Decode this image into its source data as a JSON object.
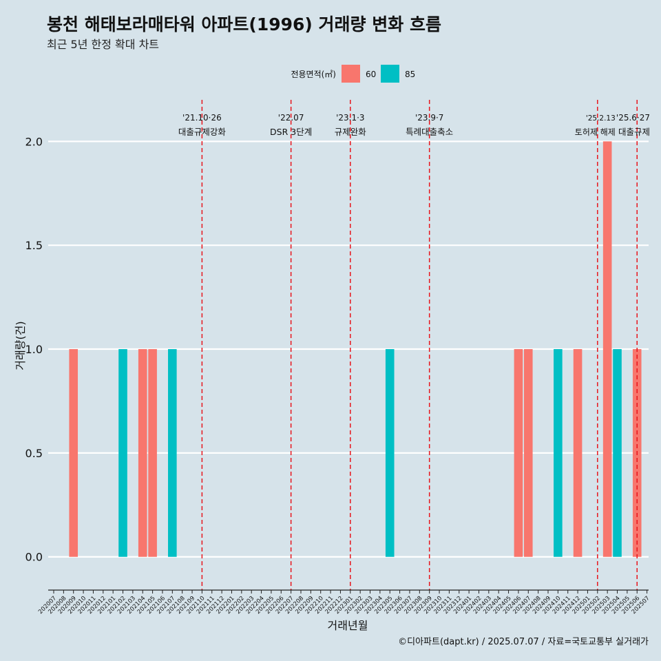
{
  "chart_data": {
    "type": "bar",
    "title": "봉천 해태보라매타워 아파트(1996) 거래량 변화 흐름",
    "subtitle": "최근 5년 한정 확대 차트",
    "xlabel": "거래년월",
    "ylabel": "거래량(건)",
    "ylim": [
      -0.16,
      2.2
    ],
    "yticks": [
      0.0,
      0.5,
      1.0,
      1.5,
      2.0
    ],
    "ytick_labels": [
      "0.0",
      "0.5",
      "1.0",
      "1.5",
      "2.0"
    ],
    "grid": true,
    "legend": {
      "title": "전용면적(㎡)",
      "placement": "top",
      "entries": [
        {
          "label": "60",
          "color": "#f8766d"
        },
        {
          "label": "85",
          "color": "#00bfc4"
        }
      ]
    },
    "categories": [
      "202007",
      "202008",
      "202009",
      "202010",
      "202011",
      "202012",
      "202101",
      "202102",
      "202103",
      "202104",
      "202105",
      "202106",
      "202107",
      "202108",
      "202109",
      "202110",
      "202111",
      "202112",
      "202201",
      "202202",
      "202203",
      "202204",
      "202205",
      "202206",
      "202207",
      "202208",
      "202209",
      "202210",
      "202211",
      "202212",
      "202301",
      "202302",
      "202303",
      "202304",
      "202305",
      "202306",
      "202307",
      "202308",
      "202309",
      "202310",
      "202311",
      "202312",
      "202401",
      "202402",
      "202403",
      "202404",
      "202405",
      "202406",
      "202407",
      "202408",
      "202409",
      "202410",
      "202411",
      "202412",
      "202501",
      "202502",
      "202503",
      "202504",
      "202505",
      "202506",
      "202507"
    ],
    "series": [
      {
        "name": "60",
        "color": "#f8766d",
        "points": [
          {
            "x": "202009",
            "y": 1
          },
          {
            "x": "202104",
            "y": 1
          },
          {
            "x": "202105",
            "y": 1
          },
          {
            "x": "202406",
            "y": 1
          },
          {
            "x": "202407",
            "y": 1
          },
          {
            "x": "202412",
            "y": 1
          },
          {
            "x": "202503",
            "y": 2
          },
          {
            "x": "202506",
            "y": 1
          }
        ]
      },
      {
        "name": "85",
        "color": "#00bfc4",
        "points": [
          {
            "x": "202102",
            "y": 1
          },
          {
            "x": "202107",
            "y": 1
          },
          {
            "x": "202305",
            "y": 1
          },
          {
            "x": "202410",
            "y": 1
          },
          {
            "x": "202504",
            "y": 1
          }
        ]
      }
    ],
    "annotations": [
      {
        "x": "202110",
        "date": "'21.10·26",
        "label": "대출규제강화"
      },
      {
        "x": "202207",
        "date": "'22.07",
        "label": "DSR 3단계"
      },
      {
        "x": "202301",
        "date": "'23.1·3",
        "label": "규제완화"
      },
      {
        "x": "202309",
        "date": "'23.9·7",
        "label": "특례대출축소"
      },
      {
        "x": "202502",
        "date": "'25.2.13",
        "label": "토허제 해제"
      },
      {
        "x": "202506",
        "date": "'25.6·27",
        "label": "대출규제"
      }
    ],
    "annotation_color": "#e8141b",
    "bar_colors": {
      "60": "#f8766d",
      "85": "#00bfc4"
    }
  },
  "caption": "©디아파트(dapt.kr) / 2025.07.07 / 자료=국토교통부 실거래가"
}
